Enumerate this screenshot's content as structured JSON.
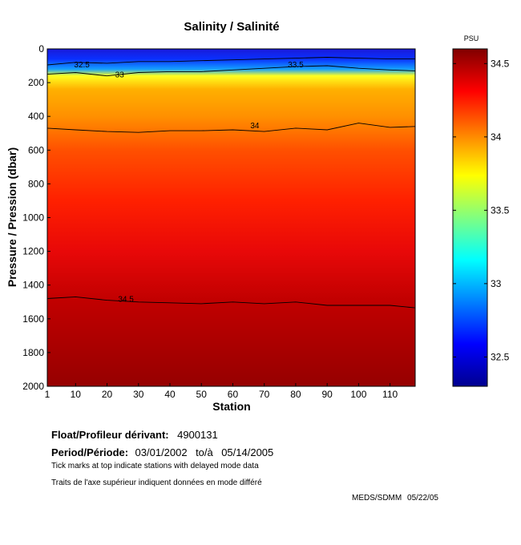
{
  "chart_data": {
    "type": "heatmap",
    "title": "Salinity / Salinité",
    "xlabel": "Station",
    "ylabel": "Pressure / Pression (dbar)",
    "xlim": [
      1,
      118
    ],
    "ylim": [
      2000,
      0
    ],
    "x_ticks": [
      1,
      10,
      20,
      30,
      40,
      50,
      60,
      70,
      80,
      90,
      100,
      110
    ],
    "y_ticks": [
      0,
      200,
      400,
      600,
      800,
      1000,
      1200,
      1400,
      1600,
      1800,
      2000
    ],
    "colorbar": {
      "unit": "PSU",
      "range": [
        32.3,
        34.6
      ],
      "ticks": [
        "32.5",
        "33",
        "33.5",
        "34",
        "34.5"
      ],
      "colormap": [
        "#00008f",
        "#0000ff",
        "#0080ff",
        "#00ffff",
        "#80ff80",
        "#ffff00",
        "#ff8000",
        "#ff0000",
        "#800000"
      ]
    },
    "contours": [
      {
        "level": "32.5",
        "stations": [
          1,
          10,
          20,
          30,
          40,
          50,
          60,
          70,
          80,
          90,
          100,
          110,
          118
        ],
        "pressure": [
          95,
          80,
          85,
          75,
          75,
          70,
          65,
          60,
          55,
          50,
          55,
          60,
          60
        ]
      },
      {
        "level": "33",
        "stations": [
          1,
          10,
          20,
          30,
          40,
          50,
          60,
          70,
          80,
          90,
          100,
          110,
          118
        ],
        "pressure": [
          150,
          140,
          160,
          140,
          135,
          135,
          125,
          115,
          105,
          100,
          115,
          125,
          130
        ]
      },
      {
        "level": "34",
        "stations": [
          1,
          10,
          20,
          30,
          40,
          50,
          60,
          70,
          80,
          90,
          100,
          110,
          118
        ],
        "pressure": [
          470,
          480,
          490,
          495,
          485,
          485,
          480,
          490,
          470,
          480,
          440,
          465,
          460
        ]
      },
      {
        "level": "34.5",
        "stations": [
          1,
          10,
          20,
          30,
          40,
          50,
          60,
          70,
          80,
          90,
          100,
          110,
          118
        ],
        "pressure": [
          1480,
          1470,
          1490,
          1500,
          1505,
          1510,
          1500,
          1510,
          1500,
          1520,
          1520,
          1520,
          1535
        ]
      }
    ],
    "contour_labels": [
      {
        "text": "32.5",
        "station": 12,
        "pressure": 95
      },
      {
        "text": "33",
        "station": 24,
        "pressure": 155
      },
      {
        "text": "33.5",
        "station": 80,
        "pressure": 95
      },
      {
        "text": "34",
        "station": 67,
        "pressure": 455
      },
      {
        "text": "34.5",
        "station": 26,
        "pressure": 1485
      }
    ],
    "grid": false
  },
  "info": {
    "float_label": "Float/Profileur dérivant:",
    "float_id": "4900131",
    "period_label": "Period/Période:",
    "period_start": "03/01/2002",
    "period_to": "to/à",
    "period_end": "05/14/2005",
    "note_en": "Tick marks at top indicate stations with delayed mode data",
    "note_fr": "Traits de l'axe supérieur indiquent données en mode différé"
  },
  "credit": {
    "agency": "MEDS/SDMM",
    "date": "05/22/05"
  }
}
